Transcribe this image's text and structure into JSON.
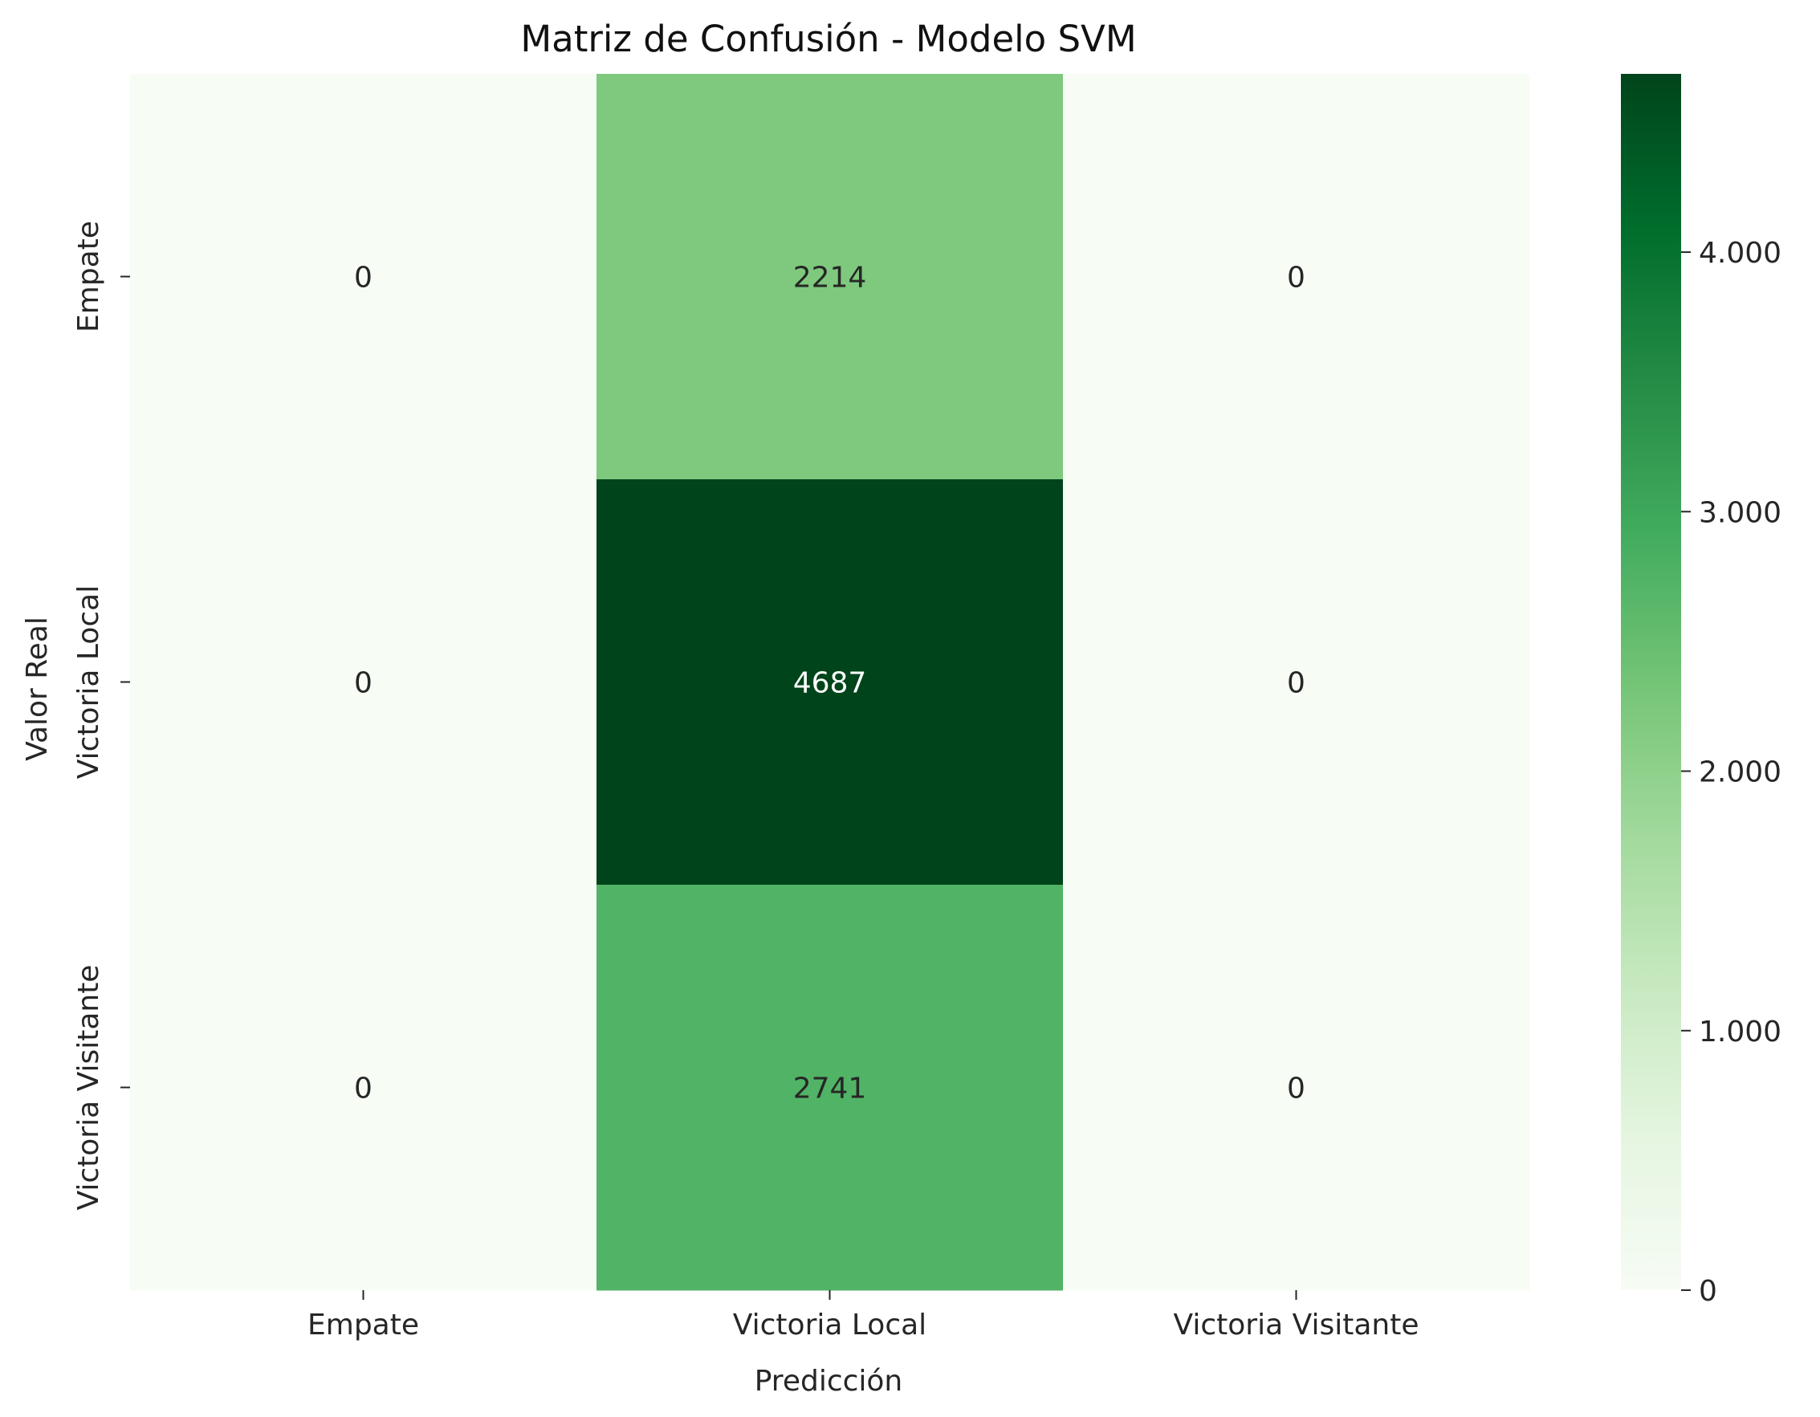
{
  "chart_data": {
    "type": "heatmap",
    "title": "Matriz de Confusión - Modelo SVM",
    "xlabel": "Predicción",
    "ylabel": "Valor Real",
    "x_categories": [
      "Empate",
      "Victoria Local",
      "Victoria Visitante"
    ],
    "y_categories": [
      "Empate",
      "Victoria Local",
      "Victoria Visitante"
    ],
    "values": [
      [
        0,
        2214,
        0
      ],
      [
        0,
        4687,
        0
      ],
      [
        0,
        2741,
        0
      ]
    ],
    "colormap": "Greens",
    "colorbar": {
      "range": [
        0,
        4687
      ],
      "ticks": [
        0,
        1000,
        2000,
        3000,
        4000
      ],
      "tick_labels": [
        "0",
        "1.000",
        "2.000",
        "3.000",
        "4.000"
      ]
    }
  }
}
